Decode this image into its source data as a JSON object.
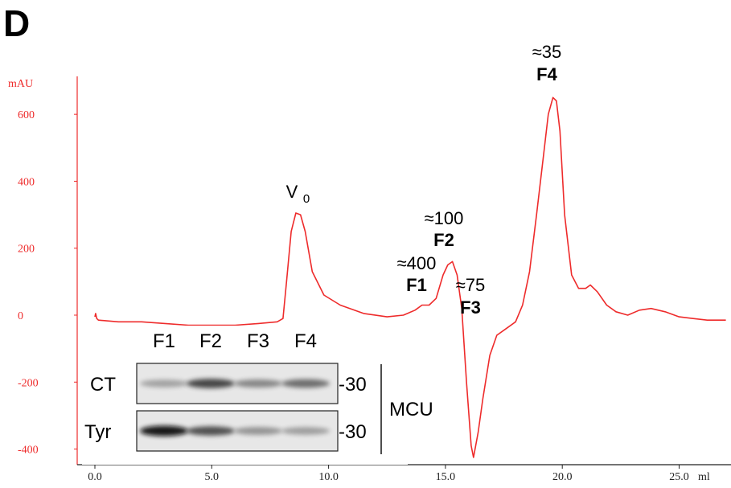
{
  "panel_letter": "D",
  "colors": {
    "trace": "#ee2b2b",
    "axis": "#ee2b2b",
    "text": "#000000",
    "xaxis": "#222222"
  },
  "chart_data": {
    "type": "line",
    "ylabel": "mAU",
    "xlabel": "ml",
    "xlim": [
      0,
      27
    ],
    "ylim": [
      -420,
      700
    ],
    "y_ticks": [
      600,
      400,
      200,
      0,
      -200,
      -400
    ],
    "x_ticks": [
      "0.0",
      "5.0",
      "10.0",
      "15.0",
      "20.0",
      "25.0"
    ],
    "series": [
      {
        "x": [
          0.0,
          0.03,
          0.08,
          0.15,
          1,
          2,
          3,
          4,
          5,
          6,
          7,
          7.8,
          8.05,
          8.2,
          8.4,
          8.6,
          8.8,
          9.0,
          9.3,
          9.8,
          10.5,
          11.5,
          12.5,
          13.2,
          13.7,
          14.0,
          14.3,
          14.6,
          14.9,
          15.1,
          15.3,
          15.5,
          15.7,
          15.9,
          16.1,
          16.2,
          16.4,
          16.6,
          16.9,
          17.2,
          17.6,
          18.0,
          18.3,
          18.6,
          18.9,
          19.2,
          19.4,
          19.6,
          19.75,
          19.9,
          20.1,
          20.4,
          20.7,
          21.0,
          21.2,
          21.5,
          21.9,
          22.3,
          22.8,
          23.3,
          23.8,
          24.4,
          25.0,
          25.6,
          26.2,
          27.0
        ],
        "y": [
          -5,
          5,
          -10,
          -15,
          -20,
          -20,
          -25,
          -30,
          -30,
          -30,
          -25,
          -20,
          -10,
          100,
          250,
          305,
          300,
          250,
          130,
          60,
          30,
          5,
          -5,
          0,
          15,
          30,
          30,
          50,
          120,
          150,
          160,
          120,
          20,
          -200,
          -390,
          -425,
          -350,
          -250,
          -120,
          -60,
          -40,
          -20,
          30,
          130,
          300,
          480,
          600,
          650,
          640,
          550,
          300,
          120,
          80,
          80,
          90,
          70,
          30,
          10,
          0,
          15,
          20,
          10,
          -5,
          -10,
          -15,
          -15
        ]
      }
    ],
    "annotations": [
      {
        "line1": "V",
        "sub": "0",
        "x": 8.6
      },
      {
        "line1": "≈400",
        "line2": "F1",
        "x": 14.0
      },
      {
        "line1": "≈100",
        "line2": "F2",
        "x": 15.3
      },
      {
        "line1": "≈75",
        "line2": "F3",
        "x": 16.0
      },
      {
        "line1": "≈35",
        "line2": "F4",
        "x": 19.6
      }
    ]
  },
  "blot": {
    "fractions": [
      "F1",
      "F2",
      "F3",
      "F4"
    ],
    "rows": [
      {
        "label": "CT",
        "marker": "-30",
        "bands": [
          0.28,
          0.75,
          0.42,
          0.55
        ]
      },
      {
        "label": "Tyr",
        "marker": "-30",
        "bands": [
          1.0,
          0.7,
          0.35,
          0.3
        ]
      }
    ],
    "protein": "MCU"
  }
}
